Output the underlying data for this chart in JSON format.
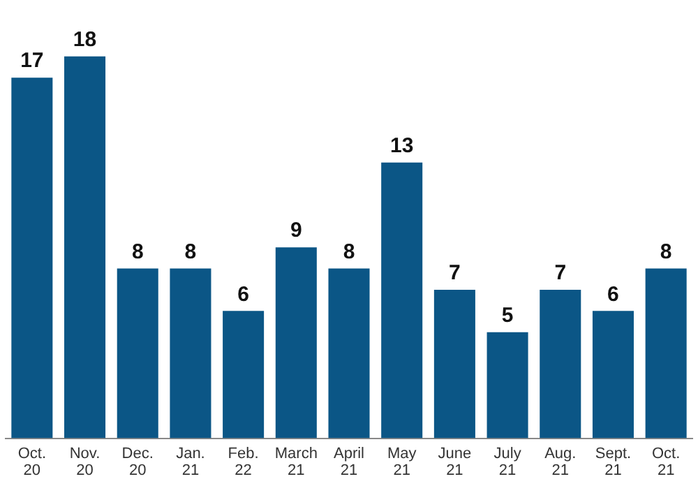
{
  "chart_data": {
    "type": "bar",
    "categories": [
      "Oct. 20",
      "Nov. 20",
      "Dec. 20",
      "Jan. 21",
      "Feb. 22",
      "March 21",
      "April 21",
      "May 21",
      "June 21",
      "July 21",
      "Aug. 21",
      "Sept. 21",
      "Oct. 21"
    ],
    "values": [
      17,
      18,
      8,
      8,
      6,
      9,
      8,
      13,
      7,
      5,
      7,
      6,
      8
    ],
    "color": "#0b5686",
    "data_labels": true,
    "grid": false,
    "legend": false
  }
}
